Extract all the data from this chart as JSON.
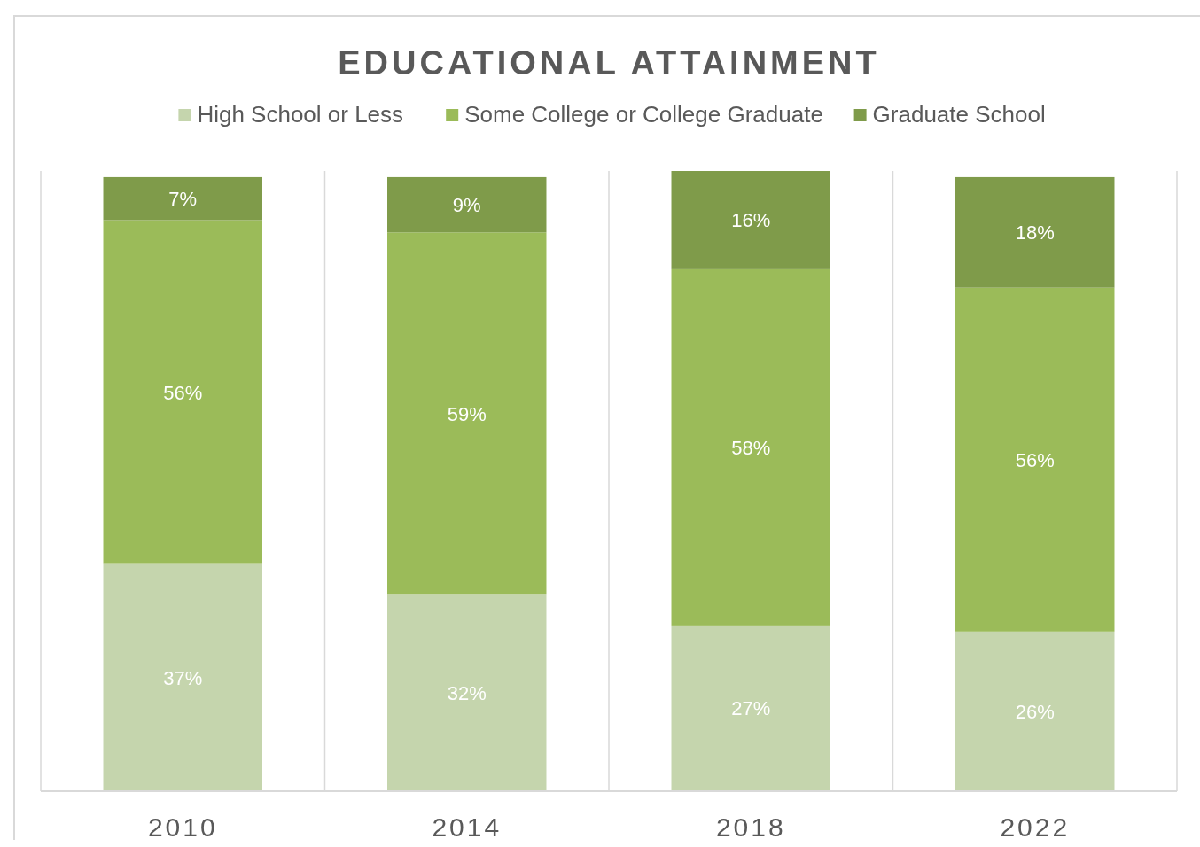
{
  "chart_data": {
    "type": "bar",
    "title": "EDUCATIONAL ATTAINMENT",
    "stacked": true,
    "categories": [
      "2010",
      "2014",
      "2018",
      "2022"
    ],
    "series": [
      {
        "name": "High School or Less",
        "color": "#c5d5ad",
        "values": [
          37,
          32,
          27,
          26
        ],
        "value_labels": [
          "37%",
          "32%",
          "27%",
          "26%"
        ]
      },
      {
        "name": "Some College or College Graduate",
        "color": "#9bbb59",
        "values": [
          56,
          59,
          58,
          56
        ],
        "value_labels": [
          "56%",
          "59%",
          "58%",
          "56%"
        ]
      },
      {
        "name": "Graduate School",
        "color": "#7f9b4a",
        "values": [
          7,
          9,
          16,
          18
        ],
        "value_labels": [
          "7%",
          "9%",
          "16%",
          "18%"
        ]
      }
    ],
    "legend": "top",
    "grid": "x"
  }
}
